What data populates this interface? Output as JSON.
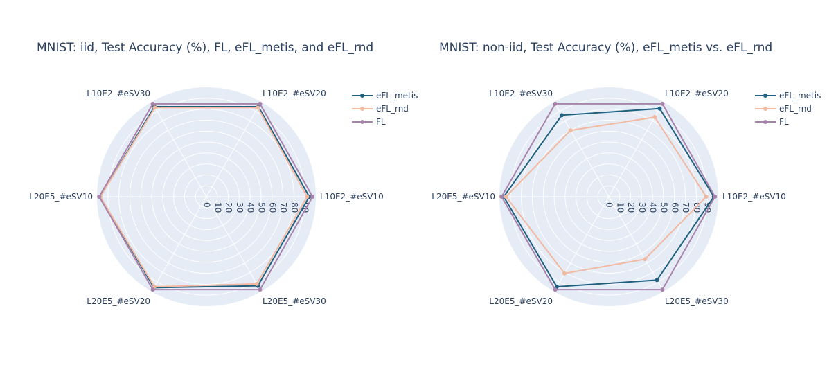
{
  "chart_data": [
    {
      "type": "radar",
      "title": "MNIST: iid, Test Accuracy (%), FL, eFL_metis, and eFL_rnd",
      "categories": [
        "L10E2_#eSV10",
        "L10E2_#eSV20",
        "L10E2_#eSV30",
        "L20E5_#eSV10",
        "L20E5_#eSV20",
        "L20E5_#eSV30"
      ],
      "radial_ticks": [
        0,
        10,
        20,
        30,
        40,
        50,
        60,
        70,
        80,
        90
      ],
      "radial_range": [
        0,
        100
      ],
      "legend_position": "top-right",
      "series": [
        {
          "name": "eFL_metis",
          "color": "#1f5f7f",
          "values": [
            94,
            95,
            95,
            97,
            96,
            94
          ]
        },
        {
          "name": "eFL_rnd",
          "color": "#f2b9a0",
          "values": [
            92,
            94,
            94,
            97,
            95,
            92
          ]
        },
        {
          "name": "FL",
          "color": "#a882aa",
          "values": [
            97,
            98,
            98,
            98,
            98,
            98
          ]
        }
      ]
    },
    {
      "type": "radar",
      "title": "MNIST: non-iid, Test Accuracy (%), eFL_metis vs. eFL_rnd",
      "categories": [
        "L10E2_#eSV10",
        "L10E2_#eSV20",
        "L10E2_#eSV30",
        "L20E5_#eSV10",
        "L20E5_#eSV20",
        "L20E5_#eSV30"
      ],
      "radial_ticks": [
        0,
        10,
        20,
        30,
        40,
        50,
        60,
        70,
        80,
        90
      ],
      "radial_range": [
        0,
        100
      ],
      "legend_position": "top-right",
      "series": [
        {
          "name": "eFL_metis",
          "color": "#1f5f7f",
          "values": [
            96,
            93,
            86,
            96,
            95,
            88
          ]
        },
        {
          "name": "eFL_rnd",
          "color": "#f2b9a0",
          "values": [
            89,
            84,
            70,
            94,
            81,
            66
          ]
        },
        {
          "name": "FL",
          "color": "#a882aa",
          "values": [
            97,
            98,
            98,
            98,
            98,
            98
          ]
        }
      ]
    }
  ]
}
